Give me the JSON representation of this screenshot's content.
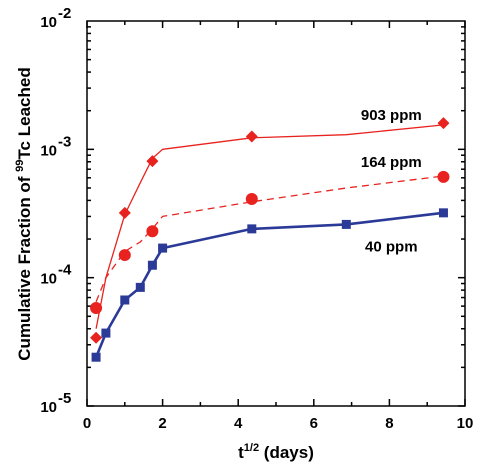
{
  "chart_data": {
    "type": "line",
    "y_scale": "log",
    "xlim": [
      0,
      10
    ],
    "ylim": [
      1e-05,
      0.01
    ],
    "x_ticks": [
      0,
      2,
      4,
      6,
      8,
      10
    ],
    "x_tick_labels": [
      "0",
      "2",
      "4",
      "6",
      "8",
      "10"
    ],
    "y_ticks": [
      1e-05,
      0.0001,
      0.001,
      0.01
    ],
    "y_tick_labels": [
      {
        "base": "10",
        "exp": "-5"
      },
      {
        "base": "10",
        "exp": "-4"
      },
      {
        "base": "10",
        "exp": "-3"
      },
      {
        "base": "10",
        "exp": "-2"
      }
    ],
    "xlabel": {
      "base": "t",
      "sup": "1/2",
      "rest": " (days)"
    },
    "ylabel": {
      "pre": "Cumulative Fraction of ",
      "sup": "99",
      "post": "Tc Leached"
    },
    "grid": false,
    "series": [
      {
        "name": "903 ppm",
        "color": "#e8231f",
        "marker": "diamond",
        "line_style": "solid",
        "line_width": 1.3,
        "line_x": [
          0.24,
          0.5,
          1.0,
          1.41,
          1.73,
          2.0,
          4.36,
          6.86,
          9.43
        ],
        "line_y": [
          4e-05,
          0.0001,
          0.00031,
          0.00055,
          0.00085,
          0.001,
          0.00123,
          0.0013,
          0.00155
        ],
        "x": [
          0.24,
          1.0,
          1.73,
          4.36,
          9.43
        ],
        "y": [
          3.4e-05,
          0.00032,
          0.00081,
          0.00126,
          0.0016
        ]
      },
      {
        "name": "164 ppm",
        "color": "#e8231f",
        "marker": "circle",
        "line_style": "dashed",
        "line_width": 1.3,
        "line_x": [
          0.24,
          0.5,
          1.0,
          1.41,
          1.73,
          2.0,
          4.36,
          6.86,
          9.43
        ],
        "line_y": [
          6.5e-05,
          0.0001,
          0.00016,
          0.00019,
          0.00024,
          0.0003,
          0.00039,
          0.0005,
          0.00062
        ],
        "x": [
          0.24,
          1.0,
          1.73,
          4.36,
          9.43
        ],
        "y": [
          5.8e-05,
          0.00015,
          0.00023,
          0.00041,
          0.00061
        ]
      },
      {
        "name": "40 ppm",
        "color": "#2b3a97",
        "marker": "square",
        "line_style": "solid",
        "line_width": 2.6,
        "line_x": [
          0.24,
          0.5,
          1.0,
          1.41,
          1.73,
          2.0,
          4.36,
          6.86,
          9.43
        ],
        "line_y": [
          2.4e-05,
          3.7e-05,
          6.7e-05,
          8.4e-05,
          0.000125,
          0.00017,
          0.00024,
          0.00026,
          0.00032
        ],
        "x": [
          0.24,
          0.5,
          1.0,
          1.41,
          1.73,
          2.0,
          4.36,
          6.86,
          9.43
        ],
        "y": [
          2.4e-05,
          3.7e-05,
          6.7e-05,
          8.4e-05,
          0.000125,
          0.00017,
          0.00024,
          0.00026,
          0.00032
        ]
      }
    ],
    "annotations": [
      {
        "text": "903 ppm",
        "x": 8.05,
        "y": 0.0017,
        "color": "#000000"
      },
      {
        "text": "164 ppm",
        "x": 8.05,
        "y": 0.00073,
        "color": "#000000"
      },
      {
        "text": "40 ppm",
        "x": 8.05,
        "y": 0.00016,
        "color": "#000000"
      }
    ]
  }
}
